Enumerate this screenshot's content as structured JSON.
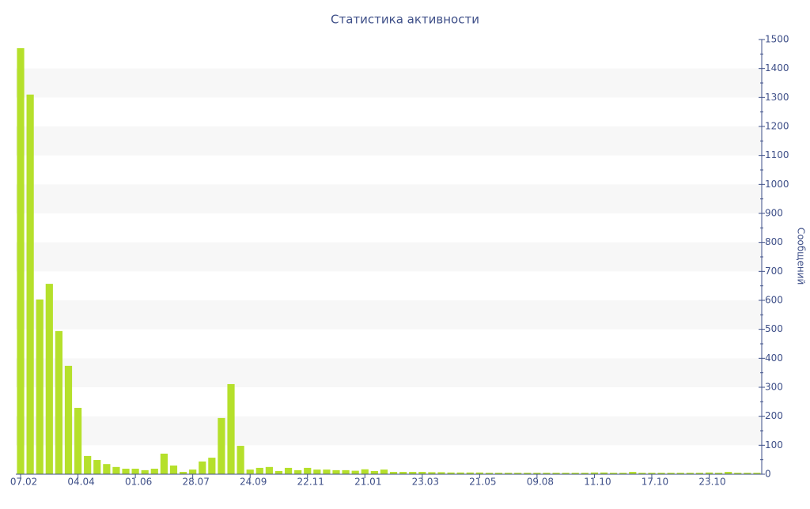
{
  "chart_data": {
    "type": "bar",
    "title": "Статистика активности",
    "y_label": "Сообщений",
    "categories": [
      "07.02",
      null,
      null,
      null,
      null,
      null,
      "04.04",
      null,
      null,
      null,
      null,
      null,
      "01.06",
      null,
      null,
      null,
      null,
      null,
      "28.07",
      null,
      null,
      null,
      null,
      null,
      "24.09",
      null,
      null,
      null,
      null,
      null,
      "22.11",
      null,
      null,
      null,
      null,
      null,
      "21.01",
      null,
      null,
      null,
      null,
      null,
      "23.03",
      null,
      null,
      null,
      null,
      null,
      "21.05",
      null,
      null,
      null,
      null,
      null,
      "09.08",
      null,
      null,
      null,
      null,
      null,
      "11.10",
      null,
      null,
      null,
      null,
      null,
      "17.10",
      null,
      null,
      null,
      null,
      null,
      "23.10",
      null,
      null,
      null,
      null,
      null
    ],
    "values": [
      1470,
      1310,
      603,
      657,
      494,
      374,
      229,
      63,
      49,
      35,
      25,
      19,
      19,
      14,
      19,
      71,
      30,
      8,
      16,
      44,
      57,
      194,
      311,
      98,
      16,
      22,
      25,
      11,
      22,
      14,
      22,
      16,
      16,
      14,
      14,
      12,
      17,
      11,
      16,
      8,
      8,
      8,
      8,
      7,
      7,
      6,
      6,
      6,
      6,
      5,
      5,
      5,
      5,
      5,
      5,
      5,
      5,
      5,
      5,
      5,
      6,
      6,
      5,
      5,
      8,
      5,
      5,
      5,
      5,
      5,
      5,
      5,
      6,
      5,
      8,
      5,
      5,
      5
    ],
    "color": "#b5e02b",
    "ylim": [
      0,
      1500
    ],
    "yticks": [
      0,
      100,
      200,
      300,
      400,
      500,
      600,
      700,
      800,
      900,
      1000,
      1100,
      1200,
      1300,
      1400,
      1500
    ],
    "grid": "bands",
    "y_axis_side": "right"
  }
}
